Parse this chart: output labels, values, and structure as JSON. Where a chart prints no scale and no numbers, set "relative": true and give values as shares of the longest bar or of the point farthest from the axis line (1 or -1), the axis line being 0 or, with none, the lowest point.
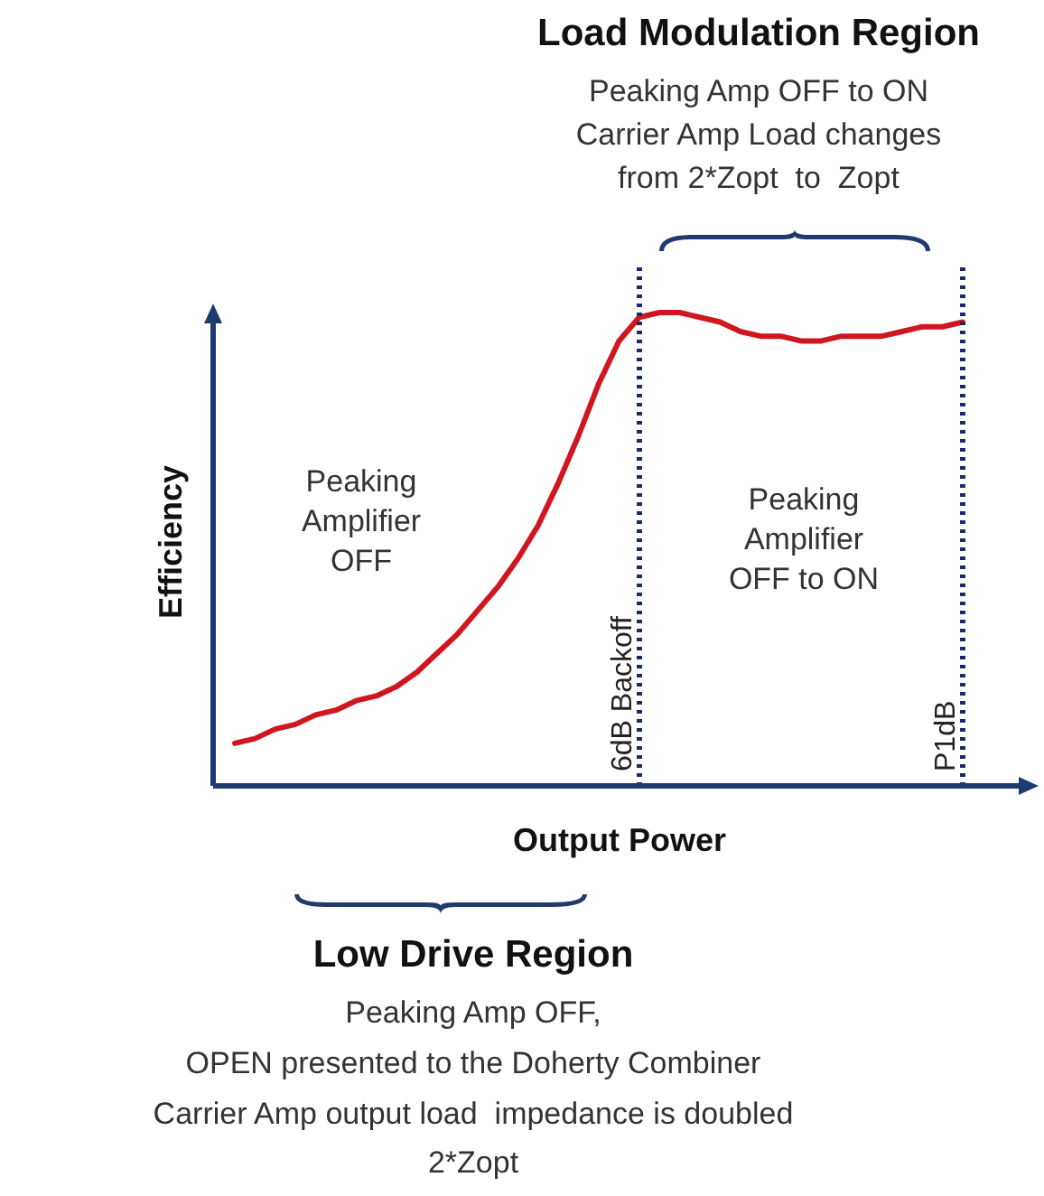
{
  "chart_data": {
    "type": "line",
    "relative": true,
    "xlabel": "Output Power",
    "ylabel": "Efficiency",
    "legend": false,
    "marker": "none",
    "line_style": "solid",
    "categories": [
      null,
      null,
      null,
      null,
      null,
      null,
      null,
      null,
      null,
      null,
      null,
      null,
      null,
      null,
      null,
      null,
      null,
      null,
      null,
      null,
      null,
      null,
      null,
      null,
      null,
      null,
      null,
      null,
      null,
      null,
      null,
      null,
      null,
      null,
      null,
      null,
      null
    ],
    "series": [
      {
        "color": "#d0161e",
        "values": [
          0.09,
          0.1,
          0.12,
          0.13,
          0.15,
          0.16,
          0.18,
          0.19,
          0.21,
          0.24,
          0.28,
          0.32,
          0.37,
          0.42,
          0.48,
          0.55,
          0.64,
          0.74,
          0.85,
          0.94,
          0.99,
          1.0,
          1.0,
          0.99,
          0.98,
          0.96,
          0.95,
          0.95,
          0.94,
          0.94,
          0.95,
          0.95,
          0.95,
          0.96,
          0.97,
          0.97,
          0.98
        ]
      }
    ],
    "annotations": [
      "6dB Backoff",
      "P1dB",
      "Load Modulation Region",
      "Peaking Amp OFF to ON",
      "Carrier Amp Load changes",
      "from 2*Zopt  to  Zopt",
      "Peaking\nAmplifier\nOFF",
      "Peaking\nAmplifier\nOFF to ON",
      "Low Drive Region",
      "Peaking Amp OFF,",
      "OPEN presented to the Doherty Combiner",
      "Carrier Amp output load  impedance is doubled",
      "2*Zopt"
    ]
  }
}
